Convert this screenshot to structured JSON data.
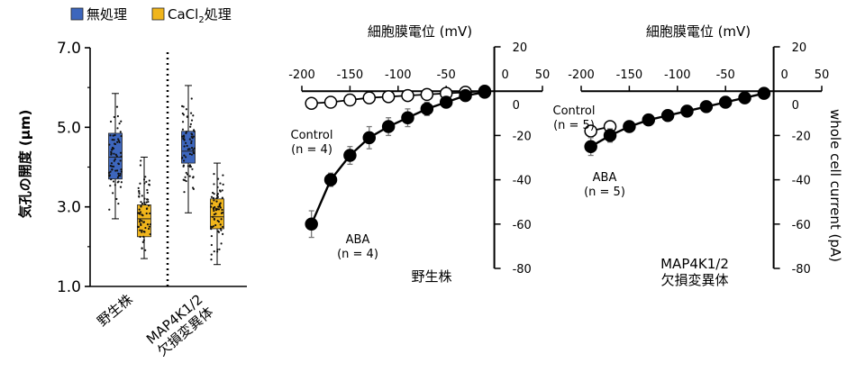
{
  "colors": {
    "untreated": "#3d66bd",
    "cacl2": "#f0b51c",
    "line": "#000000",
    "error": "#777777"
  },
  "chart_data": [
    {
      "type": "box",
      "ylabel": "気孔の開度 (μm)",
      "ylim": [
        1.0,
        7.0
      ],
      "yticks": [
        "1.0",
        "3.0",
        "5.0",
        "7.0"
      ],
      "legend": [
        {
          "name": "無処理",
          "color": "#3d66bd"
        },
        {
          "name_main": "CaCl",
          "name_sub": "2",
          "name_tail": "処理",
          "color": "#f0b51c"
        }
      ],
      "groups": [
        {
          "label": "野生株",
          "boxes": [
            {
              "series": "無処理",
              "whisker_low": 2.7,
              "q1": 3.7,
              "median": 4.25,
              "q3": 4.85,
              "whisker_high": 5.85
            },
            {
              "series": "CaCl2処理",
              "whisker_low": 1.7,
              "q1": 2.25,
              "median": 2.7,
              "q3": 3.05,
              "whisker_high": 4.25
            }
          ]
        },
        {
          "label_lines": [
            "MAP4K1/2",
            "欠損変異体"
          ],
          "boxes": [
            {
              "series": "無処理",
              "whisker_low": 2.85,
              "q1": 4.1,
              "median": 4.4,
              "q3": 4.9,
              "whisker_high": 6.05
            },
            {
              "series": "CaCl2処理",
              "whisker_low": 1.55,
              "q1": 2.45,
              "median": 2.75,
              "q3": 3.2,
              "whisker_high": 4.1
            }
          ]
        }
      ]
    },
    {
      "type": "line",
      "title": "細胞膜電位 (mV)",
      "caption": "野生株",
      "xlim": [
        -200,
        50
      ],
      "ylim": [
        -80,
        20
      ],
      "xticks": [
        "-200",
        "-150",
        "-100",
        "-50",
        "0",
        "50"
      ],
      "yticks": [
        "20",
        "0",
        "-20",
        "-40",
        "-60",
        "-80"
      ],
      "series": [
        {
          "name": "Control",
          "note": "(n = 4)",
          "marker": "open",
          "x": [
            -190,
            -170,
            -150,
            -130,
            -110,
            -90,
            -70,
            -50,
            -30,
            -10
          ],
          "y": [
            -5.5,
            -5,
            -4,
            -3,
            -2.5,
            -2,
            -1.5,
            -1,
            -0.5,
            0
          ],
          "err": [
            1.5,
            1.5,
            1,
            1,
            1,
            1,
            0.5,
            0.5,
            0.5,
            0
          ]
        },
        {
          "name": "ABA",
          "note": "(n = 4)",
          "marker": "filled",
          "x": [
            -190,
            -170,
            -150,
            -130,
            -110,
            -90,
            -70,
            -50,
            -30,
            -10
          ],
          "y": [
            -60,
            -40,
            -29,
            -21,
            -16,
            -12,
            -8,
            -5,
            -2,
            -0.5
          ],
          "err": [
            6,
            3,
            4,
            5,
            4,
            4,
            3,
            2,
            1,
            0
          ]
        }
      ]
    },
    {
      "type": "line",
      "title": "細胞膜電位 (mV)",
      "caption_lines": [
        "MAP4K1/2",
        "欠損変異体"
      ],
      "ylabel": "whole cell current (pA)",
      "xlim": [
        -200,
        50
      ],
      "ylim": [
        -80,
        20
      ],
      "xticks": [
        "-200",
        "-150",
        "-100",
        "-50",
        "0",
        "50"
      ],
      "yticks": [
        "20",
        "0",
        "-20",
        "-40",
        "-60",
        "-80"
      ],
      "series": [
        {
          "name": "Control",
          "note": "(n = 5)",
          "marker": "open",
          "x": [
            -190,
            -170
          ],
          "y": [
            -18,
            -16
          ],
          "err": [
            2,
            2
          ]
        },
        {
          "name": "ABA",
          "note": "(n = 5)",
          "marker": "filled",
          "x": [
            -190,
            -170,
            -150,
            -130,
            -110,
            -90,
            -70,
            -50,
            -30,
            -10
          ],
          "y": [
            -25,
            -20,
            -16,
            -13,
            -11,
            -9,
            -7,
            -5,
            -3,
            -1
          ],
          "err": [
            4,
            3,
            2,
            1,
            1,
            1,
            1,
            1,
            0.5,
            0
          ]
        }
      ]
    }
  ]
}
